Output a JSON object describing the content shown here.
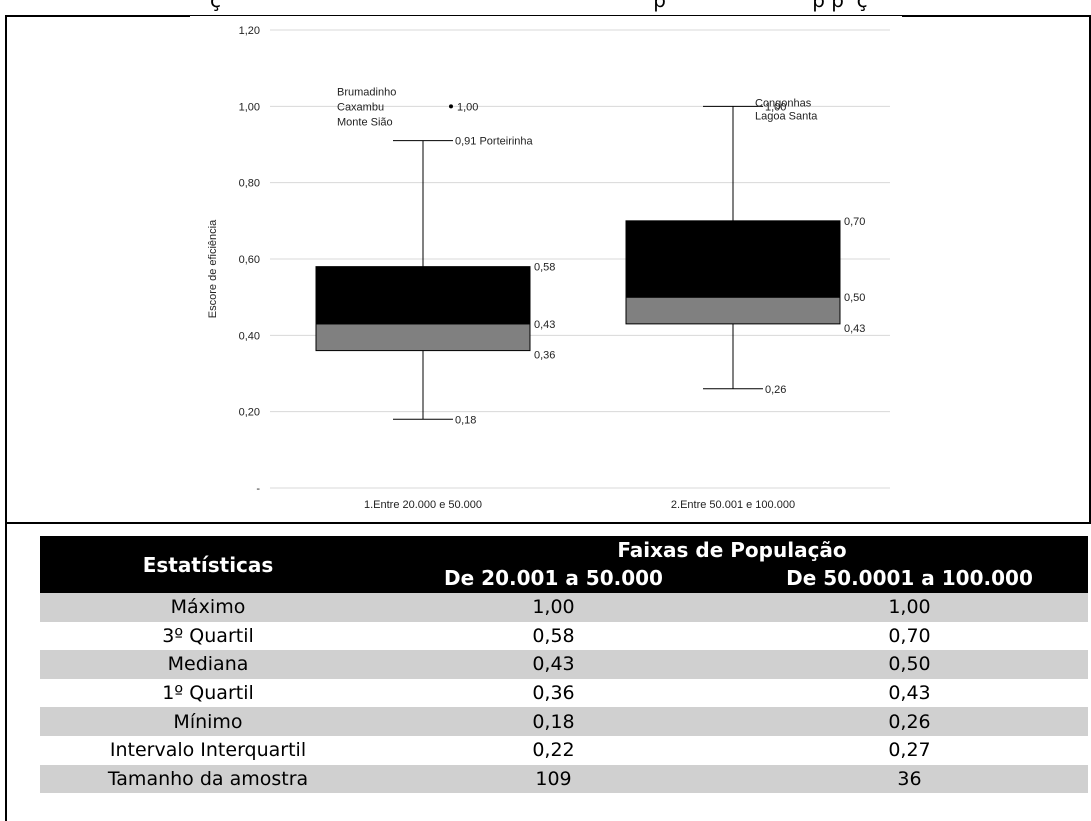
{
  "chart_data": {
    "type": "boxplot",
    "title": "",
    "ylabel": "Escore de eficiência",
    "xlabel": "",
    "ylim": [
      0,
      1.2
    ],
    "y_ticks": [
      "-",
      "0,20",
      "0,40",
      "0,60",
      "0,80",
      "1,00",
      "1,20"
    ],
    "y_tick_values": [
      0,
      0.2,
      0.4,
      0.6,
      0.8,
      1.0,
      1.2
    ],
    "grid": true,
    "categories": [
      "1.Entre 20.000 e 50.000",
      "2.Entre 50.001 e 100.000"
    ],
    "boxes": [
      {
        "category": "1.Entre 20.000 e 50.000",
        "whisker_max": 0.91,
        "q3": 0.58,
        "median": 0.43,
        "q1": 0.36,
        "min": 0.18,
        "labels": {
          "whisker_max": "0,91 Porteirinha",
          "q3": "0,58",
          "median": "0,43",
          "q1": "0,36",
          "min": "0,18"
        },
        "outliers": [
          {
            "value": 1.0,
            "label": "1,00",
            "names": [
              "Brumadinho",
              "Caxambu",
              "Monte Sião"
            ]
          }
        ]
      },
      {
        "category": "2.Entre 50.001 e 100.000",
        "whisker_max": 1.0,
        "q3": 0.7,
        "median": 0.5,
        "q1": 0.43,
        "min": 0.26,
        "labels": {
          "whisker_max": "1,00",
          "q3": "0,70",
          "median": "0,50",
          "q1": "0,43",
          "min": "0,26"
        },
        "max_names": [
          "Congonhas",
          "Lagoa Santa"
        ],
        "outliers": []
      }
    ],
    "colors": {
      "upper_box": "#000000",
      "lower_box": "#808080",
      "grid": "#d8d8d8",
      "whisker": "#000000"
    }
  },
  "table": {
    "header_label": "Estatísticas",
    "header_group": "Faixas de População",
    "columns": [
      "De 20.001 a 50.000",
      "De 50.0001 a 100.000"
    ],
    "rows": [
      {
        "label": "Máximo",
        "a": "1,00",
        "b": "1,00"
      },
      {
        "label": "3º Quartil",
        "a": "0,58",
        "b": "0,70"
      },
      {
        "label": "Mediana",
        "a": "0,43",
        "b": "0,50"
      },
      {
        "label": "1º Quartil",
        "a": "0,36",
        "b": "0,43"
      },
      {
        "label": "Mínimo",
        "a": "0,18",
        "b": "0,26"
      },
      {
        "label": "Intervalo Interquartil",
        "a": "0,22",
        "b": "0,27"
      },
      {
        "label": "Tamanho da amostra",
        "a": "109",
        "b": "36"
      }
    ]
  }
}
